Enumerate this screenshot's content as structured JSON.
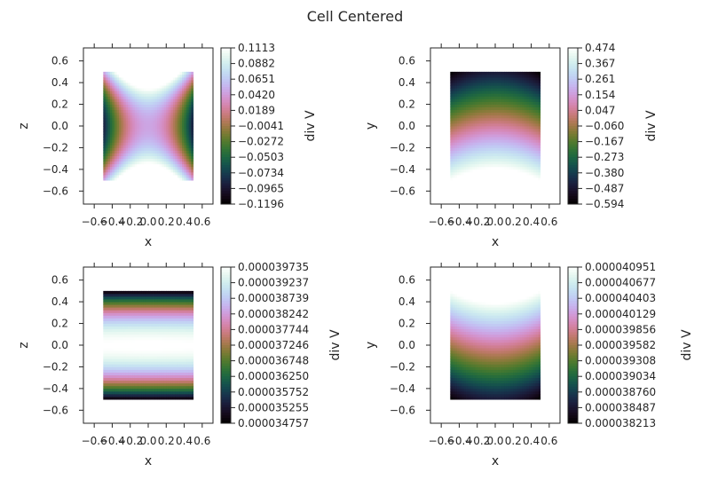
{
  "figure": {
    "title": "Cell Centered"
  },
  "chart_data": [
    {
      "type": "heatmap",
      "colormap": "cubehelix",
      "xlabel": "x",
      "ylabel": "z",
      "xlim": [
        -0.72,
        0.72
      ],
      "ylim": [
        -0.72,
        0.72
      ],
      "data_extent": {
        "x": [
          -0.5,
          0.5
        ],
        "y": [
          -0.5,
          0.5
        ]
      },
      "xticks": [
        -0.6,
        -0.4,
        -0.2,
        0.0,
        0.2,
        0.4,
        0.6
      ],
      "xtick_labels": [
        "−0.6",
        "−0.4",
        "−0.2",
        "0.0",
        "0.2",
        "0.4",
        "0.6"
      ],
      "yticks": [
        0.6,
        0.4,
        0.2,
        0.0,
        -0.2,
        -0.4,
        -0.6
      ],
      "ytick_labels": [
        "0.6",
        "0.4",
        "0.2",
        "0.0",
        "−0.2",
        "−0.4",
        "−0.6"
      ],
      "pattern": "saddle",
      "colorbar": {
        "label": "div V",
        "min": -0.1196,
        "max": 0.1113,
        "ticks": [
          "0.1113",
          "0.0882",
          "0.0651",
          "0.0420",
          "0.0189",
          "−0.0041",
          "−0.0272",
          "−0.0503",
          "−0.0734",
          "−0.0965",
          "−0.1196"
        ]
      }
    },
    {
      "type": "heatmap",
      "colormap": "cubehelix",
      "xlabel": "x",
      "ylabel": "y",
      "xlim": [
        -0.72,
        0.72
      ],
      "ylim": [
        -0.72,
        0.72
      ],
      "data_extent": {
        "x": [
          -0.5,
          0.5
        ],
        "y": [
          -0.5,
          0.5
        ]
      },
      "xticks": [
        -0.6,
        -0.4,
        -0.2,
        0.0,
        0.2,
        0.4,
        0.6
      ],
      "xtick_labels": [
        "−0.6",
        "−0.4",
        "−0.2",
        "0.0",
        "0.2",
        "0.4",
        "0.6"
      ],
      "yticks": [
        0.6,
        0.4,
        0.2,
        0.0,
        -0.2,
        -0.4,
        -0.6
      ],
      "ytick_labels": [
        "0.6",
        "0.4",
        "0.2",
        "0.0",
        "−0.2",
        "−0.4",
        "−0.6"
      ],
      "pattern": "dark-top-arch",
      "colorbar": {
        "label": "div V",
        "min": -0.594,
        "max": 0.474,
        "ticks": [
          "0.474",
          "0.367",
          "0.261",
          "0.154",
          "0.047",
          "−0.060",
          "−0.167",
          "−0.273",
          "−0.380",
          "−0.487",
          "−0.594"
        ]
      }
    },
    {
      "type": "heatmap",
      "colormap": "cubehelix",
      "xlabel": "x",
      "ylabel": "z",
      "xlim": [
        -0.72,
        0.72
      ],
      "ylim": [
        -0.72,
        0.72
      ],
      "data_extent": {
        "x": [
          -0.5,
          0.5
        ],
        "y": [
          -0.5,
          0.5
        ]
      },
      "xticks": [
        -0.6,
        -0.4,
        -0.2,
        0.0,
        0.2,
        0.4,
        0.6
      ],
      "xtick_labels": [
        "−0.6",
        "−0.4",
        "−0.2",
        "0.0",
        "0.2",
        "0.4",
        "0.6"
      ],
      "yticks": [
        0.6,
        0.4,
        0.2,
        0.0,
        -0.2,
        -0.4,
        -0.6
      ],
      "ytick_labels": [
        "0.6",
        "0.4",
        "0.2",
        "0.0",
        "−0.2",
        "−0.4",
        "−0.6"
      ],
      "pattern": "horizontal-bands",
      "colorbar": {
        "label": "div V",
        "min": 3.4757e-05,
        "max": 3.9735e-05,
        "ticks": [
          "0.000039735",
          "0.000039237",
          "0.000038739",
          "0.000038242",
          "0.000037744",
          "0.000037246",
          "0.000036748",
          "0.000036250",
          "0.000035752",
          "0.000035255",
          "0.000034757"
        ]
      }
    },
    {
      "type": "heatmap",
      "colormap": "cubehelix",
      "xlabel": "x",
      "ylabel": "y",
      "xlim": [
        -0.72,
        0.72
      ],
      "ylim": [
        -0.72,
        0.72
      ],
      "data_extent": {
        "x": [
          -0.5,
          0.5
        ],
        "y": [
          -0.5,
          0.5
        ]
      },
      "xticks": [
        -0.6,
        -0.4,
        -0.2,
        0.0,
        0.2,
        0.4,
        0.6
      ],
      "xtick_labels": [
        "−0.6",
        "−0.4",
        "−0.2",
        "0.0",
        "0.2",
        "0.4",
        "0.6"
      ],
      "yticks": [
        0.6,
        0.4,
        0.2,
        0.0,
        -0.2,
        -0.4,
        -0.6
      ],
      "ytick_labels": [
        "0.6",
        "0.4",
        "0.2",
        "0.0",
        "−0.2",
        "−0.4",
        "−0.6"
      ],
      "pattern": "dark-bottom-arch",
      "colorbar": {
        "label": "div V",
        "min": 3.8213e-05,
        "max": 4.0951e-05,
        "ticks": [
          "0.000040951",
          "0.000040677",
          "0.000040403",
          "0.000040129",
          "0.000039856",
          "0.000039582",
          "0.000039308",
          "0.000039034",
          "0.000038760",
          "0.000038487",
          "0.000038213"
        ]
      }
    }
  ]
}
